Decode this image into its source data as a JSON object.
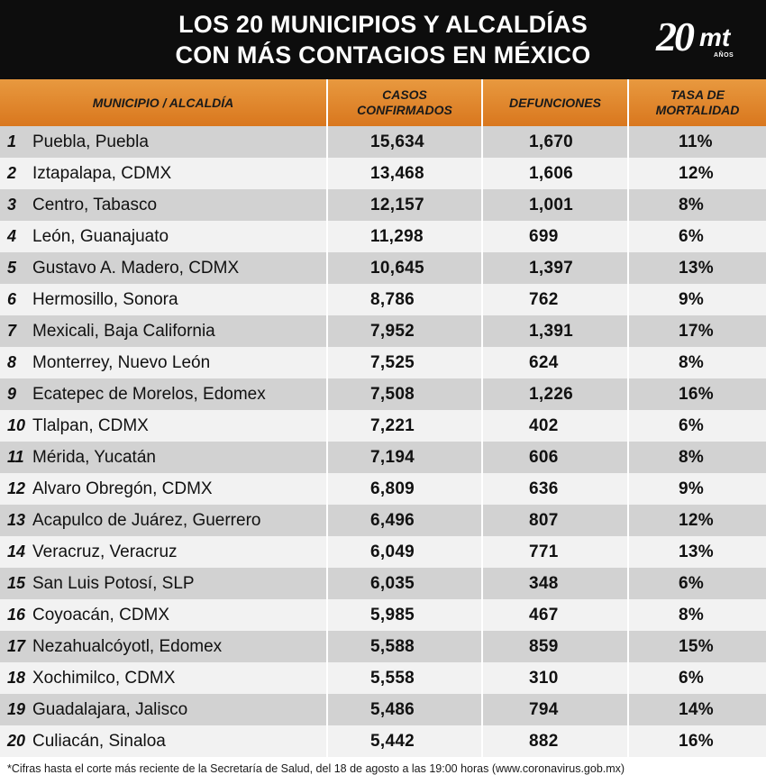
{
  "title": {
    "line1": "LOS 20 MUNICIPIOS Y ALCALDÍAS",
    "line2": "CON MÁS CONTAGIOS EN MÉXICO"
  },
  "logo": {
    "number": "20",
    "letters": "mt",
    "sub": "AÑOS"
  },
  "table": {
    "headers": {
      "municipio": "MUNICIPIO / ALCALDÍA",
      "casos_1": "CASOS",
      "casos_2": "CONFIRMADOS",
      "defunciones": "DEFUNCIONES",
      "tasa_1": "TASA DE",
      "tasa_2": "MORTALIDAD"
    },
    "rows": [
      {
        "rank": "1",
        "name": "Puebla, Puebla",
        "casos": "15,634",
        "def": "1,670",
        "tasa": "11%"
      },
      {
        "rank": "2",
        "name": "Iztapalapa, CDMX",
        "casos": "13,468",
        "def": "1,606",
        "tasa": "12%"
      },
      {
        "rank": "3",
        "name": "Centro, Tabasco",
        "casos": "12,157",
        "def": "1,001",
        "tasa": "8%"
      },
      {
        "rank": "4",
        "name": "León, Guanajuato",
        "casos": "11,298",
        "def": "699",
        "tasa": "6%"
      },
      {
        "rank": "5",
        "name": "Gustavo A. Madero, CDMX",
        "casos": "10,645",
        "def": "1,397",
        "tasa": "13%"
      },
      {
        "rank": "6",
        "name": "Hermosillo, Sonora",
        "casos": "8,786",
        "def": "762",
        "tasa": "9%"
      },
      {
        "rank": "7",
        "name": "Mexicali, Baja California",
        "casos": "7,952",
        "def": "1,391",
        "tasa": "17%"
      },
      {
        "rank": "8",
        "name": "Monterrey, Nuevo León",
        "casos": "7,525",
        "def": "624",
        "tasa": "8%"
      },
      {
        "rank": "9",
        "name": "Ecatepec de Morelos, Edomex",
        "casos": "7,508",
        "def": "1,226",
        "tasa": "16%"
      },
      {
        "rank": "10",
        "name": "Tlalpan, CDMX",
        "casos": "7,221",
        "def": "402",
        "tasa": "6%"
      },
      {
        "rank": "11",
        "name": "Mérida, Yucatán",
        "casos": "7,194",
        "def": "606",
        "tasa": "8%"
      },
      {
        "rank": "12",
        "name": "Alvaro Obregón, CDMX",
        "casos": "6,809",
        "def": "636",
        "tasa": "9%"
      },
      {
        "rank": "13",
        "name": "Acapulco de Juárez, Guerrero",
        "casos": "6,496",
        "def": "807",
        "tasa": "12%"
      },
      {
        "rank": "14",
        "name": "Veracruz, Veracruz",
        "casos": "6,049",
        "def": "771",
        "tasa": "13%"
      },
      {
        "rank": "15",
        "name": "San Luis Potosí, SLP",
        "casos": "6,035",
        "def": "348",
        "tasa": "6%"
      },
      {
        "rank": "16",
        "name": "Coyoacán, CDMX",
        "casos": "5,985",
        "def": "467",
        "tasa": "8%"
      },
      {
        "rank": "17",
        "name": "Nezahualcóyotl, Edomex",
        "casos": "5,588",
        "def": "859",
        "tasa": "15%"
      },
      {
        "rank": "18",
        "name": "Xochimilco, CDMX",
        "casos": "5,558",
        "def": "310",
        "tasa": "6%"
      },
      {
        "rank": "19",
        "name": "Guadalajara, Jalisco",
        "casos": "5,486",
        "def": "794",
        "tasa": "14%"
      },
      {
        "rank": "20",
        "name": "Culiacán, Sinaloa",
        "casos": "5,442",
        "def": "882",
        "tasa": "16%"
      }
    ]
  },
  "footnote": "*Cifras hasta el corte más reciente de la Secretaría de Salud, del 18 de agosto a las 19:00 horas (www.coronavirus.gob.mx)",
  "colors": {
    "header_bg": "#0d0d0d",
    "table_header": "#e08a2e",
    "row_dark": "#d2d2d2",
    "row_light": "#f2f2f2"
  }
}
